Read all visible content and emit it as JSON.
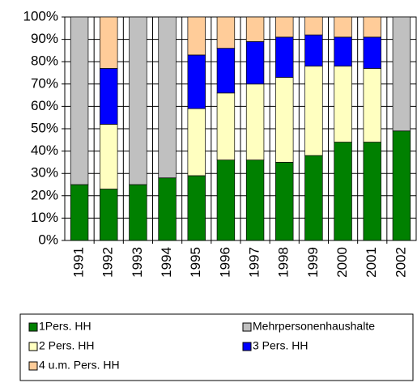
{
  "chart_data": {
    "type": "stacked_bar",
    "categories": [
      "1991",
      "1992",
      "1993",
      "1994",
      "1995",
      "1996",
      "1997",
      "1998",
      "1999",
      "2000",
      "2001",
      "2002"
    ],
    "series": [
      {
        "name": "1Pers. HH",
        "color": "#008000",
        "values": [
          25,
          23,
          25,
          28,
          29,
          36,
          36,
          35,
          38,
          44,
          44,
          49
        ]
      },
      {
        "name": "Mehrpersonenhaushalte",
        "color": "#c0c0c0",
        "values": [
          75,
          null,
          75,
          72,
          null,
          null,
          null,
          null,
          null,
          null,
          null,
          51
        ]
      },
      {
        "name": "2 Pers. HH",
        "color": "#ffffc0",
        "values": [
          null,
          29,
          null,
          null,
          30,
          30,
          34,
          38,
          40,
          34,
          33,
          null
        ]
      },
      {
        "name": "3 Pers. HH",
        "color": "#0000ff",
        "values": [
          null,
          25,
          null,
          null,
          24,
          20,
          19,
          18,
          14,
          13,
          14,
          null
        ]
      },
      {
        "name": "4 u.m. Pers. HH",
        "color": "#ffcc99",
        "values": [
          null,
          23,
          null,
          null,
          17,
          14,
          11,
          9,
          8,
          9,
          9,
          null
        ]
      }
    ],
    "ylim": [
      0,
      100
    ],
    "yticks": [
      {
        "value": 0,
        "label": "0%"
      },
      {
        "value": 10,
        "label": "10%"
      },
      {
        "value": 20,
        "label": "20%"
      },
      {
        "value": 30,
        "label": "30%"
      },
      {
        "value": 40,
        "label": "40%"
      },
      {
        "value": 50,
        "label": "50%"
      },
      {
        "value": 60,
        "label": "60%"
      },
      {
        "value": 70,
        "label": "70%"
      },
      {
        "value": 80,
        "label": "80%"
      },
      {
        "value": 90,
        "label": "90%"
      },
      {
        "value": 100,
        "label": "100%"
      }
    ],
    "grid": true
  }
}
